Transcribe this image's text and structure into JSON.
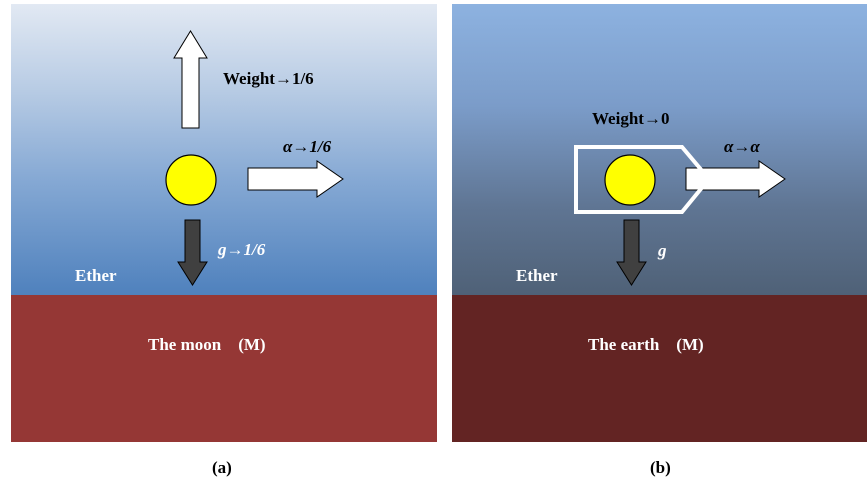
{
  "panel_a": {
    "weight_label": "Weight→1/6",
    "alpha_label": "α→1/6",
    "g_label": "g→1/6",
    "ether_label": "Ether",
    "ground_label": "The moon    (M)",
    "caption": "(a)"
  },
  "panel_b": {
    "weight_label": "Weight→0",
    "alpha_label": "α→α",
    "g_label": "g",
    "ether_label": "Ether",
    "ground_label": "The earth    (M)",
    "caption": "(b)"
  },
  "colors": {
    "ball": "#ffff00",
    "moon_ground": "#953735",
    "earth_ground": "#632423",
    "gravity_arrow": "#404040",
    "outline_arrow": "#ffffff"
  }
}
